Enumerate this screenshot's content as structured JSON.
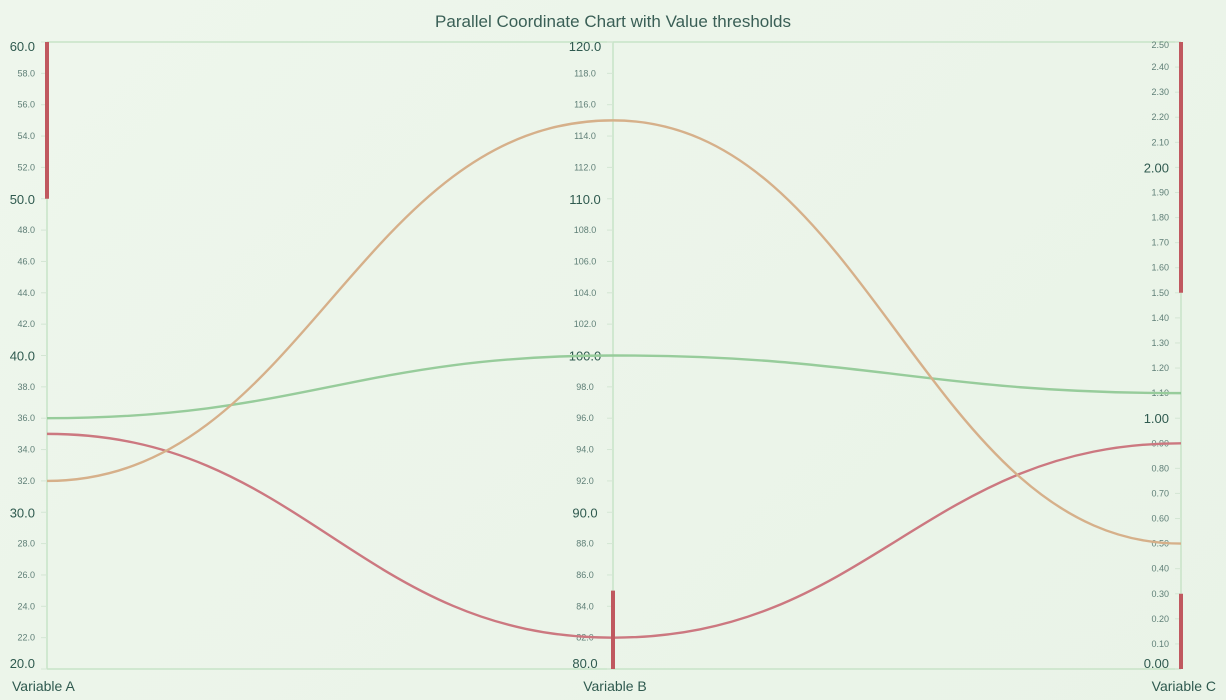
{
  "chart_data": {
    "type": "parallel-coordinates",
    "title": "Parallel Coordinate Chart with Value thresholds",
    "axes": [
      {
        "name": "Variable A",
        "min": 20,
        "max": 60,
        "step": 2,
        "major_every": 10,
        "decimals": 1,
        "threshold": [
          50,
          60
        ]
      },
      {
        "name": "Variable B",
        "min": 80,
        "max": 120,
        "step": 2,
        "major_every": 10,
        "decimals": 1,
        "threshold": [
          80,
          85
        ]
      },
      {
        "name": "Variable C",
        "min": 0,
        "max": 2.5,
        "step": 0.1,
        "major_every": 1,
        "decimals": 2,
        "threshold": [
          0,
          0.3,
          1.5,
          2.5
        ]
      }
    ],
    "series": [
      {
        "values": [
          36.0,
          100.0,
          1.1
        ],
        "color": "#97cc9b"
      },
      {
        "values": [
          35.0,
          82.0,
          0.9
        ],
        "color": "#cc7880"
      },
      {
        "values": [
          32.0,
          115.0,
          0.5
        ],
        "color": "#d6b08a"
      }
    ],
    "grid": false,
    "legend": "none"
  }
}
